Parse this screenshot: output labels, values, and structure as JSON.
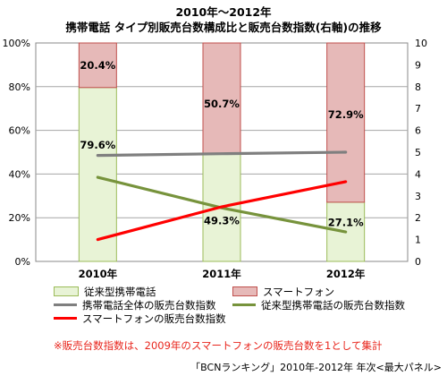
{
  "chart_data": {
    "type": "bar",
    "title_line1": "2010年～2012年",
    "title_line2": "携帯電話 タイプ別販売台数構成比と販売台数指数(右軸)の推移",
    "categories": [
      "2010年",
      "2011年",
      "2012年"
    ],
    "y_left_ticks": [
      "0%",
      "20%",
      "40%",
      "60%",
      "80%",
      "100%"
    ],
    "y_left_range": [
      0,
      100
    ],
    "y_right_ticks": [
      "0",
      "1",
      "2",
      "3",
      "4",
      "5",
      "6",
      "7",
      "8",
      "9",
      "10"
    ],
    "y_right_range": [
      0,
      10
    ],
    "stacked_bars": [
      {
        "name": "従来型携帯電話",
        "color": "#e8f3d6",
        "border": "#9bbb59",
        "values": [
          79.6,
          49.3,
          27.1
        ],
        "labels": [
          "79.6%",
          "49.3%",
          "27.1%"
        ]
      },
      {
        "name": "スマートフォン",
        "color": "#e6b9b8",
        "border": "#c0504d",
        "values": [
          20.4,
          50.7,
          72.9
        ],
        "labels": [
          "20.4%",
          "50.7%",
          "72.9%"
        ]
      }
    ],
    "lines": [
      {
        "name": "携帯電話全体の販売台数指数",
        "color": "#7f7f7f",
        "values": [
          4.85,
          4.93,
          5.0
        ]
      },
      {
        "name": "従来型携帯電話の販売台数指数",
        "color": "#77933c",
        "values": [
          3.85,
          2.45,
          1.35
        ]
      },
      {
        "name": "スマートフォンの販売台数指数",
        "color": "#ff0000",
        "values": [
          1.0,
          2.5,
          3.65
        ]
      }
    ],
    "grid": true
  },
  "note": "※販売台数指数は、2009年のスマートフォンの販売台数を1として集計",
  "source": "「BCNランキング」2010年-2012年 年次<最大パネル>"
}
